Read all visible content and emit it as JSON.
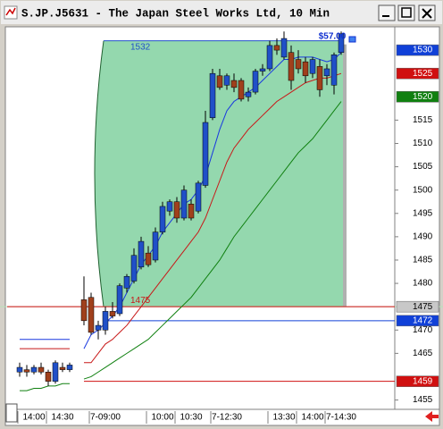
{
  "window": {
    "title": "S.JP.J5631 - The Japan Steel Works Ltd, 10 Min"
  },
  "chart_data": {
    "type": "candlestick",
    "categories": [
      null,
      null,
      "14:00",
      null,
      null,
      null,
      "14:30",
      null,
      null,
      null,
      null,
      null,
      "7-09:00",
      null,
      null,
      null,
      null,
      null,
      null,
      null,
      "10:00",
      null,
      null,
      null,
      "10:30",
      null,
      null,
      null,
      null,
      "7-12:30",
      null,
      null,
      null,
      null,
      null,
      null,
      null,
      "13:30",
      null,
      null,
      null,
      "14:00",
      null,
      null,
      null,
      "7-14:30"
    ],
    "open": [
      1461,
      1461.5,
      1461,
      1462,
      1461,
      1459,
      1462,
      1461.5,
      null,
      1476.5,
      1477,
      1470,
      1470,
      1474,
      1473.5,
      1479,
      1480.5,
      1483.5,
      1486.5,
      1485,
      1491,
      1495.5,
      1497.5,
      1494,
      1497,
      1495.5,
      1501,
      1515.5,
      1524.5,
      1522.5,
      1523.5,
      1523.5,
      1520,
      1521,
      1525.5,
      1526,
      1531,
      1528.5,
      1529.5,
      1528,
      1527.5,
      1525,
      1526.5,
      1524.5,
      1522.5,
      1529.5
    ],
    "high": [
      1463,
      1462.5,
      1462.5,
      1463,
      1461.5,
      1463.5,
      1463,
      1463,
      null,
      1481.5,
      1478,
      1472,
      1475,
      1476,
      1480,
      1482,
      1487.5,
      1490,
      1488,
      1492,
      1497.5,
      1498,
      1498.5,
      1501,
      1498,
      1502,
      1517,
      1526,
      1526,
      1525,
      1525,
      1524,
      1522,
      1526,
      1527,
      1532,
      1532.5,
      1534,
      1531,
      1530,
      1528.5,
      1528.5,
      1528,
      1527,
      1529.5,
      1534
    ],
    "low": [
      1460,
      1460,
      1460.5,
      1460.5,
      1458,
      1458.5,
      1461,
      1461,
      null,
      1471,
      1469,
      1468,
      1469,
      1472.5,
      1473,
      1478,
      1480,
      1483,
      1483.5,
      1484.5,
      1490.5,
      1494.5,
      1493,
      1493.5,
      1493.5,
      1495,
      1500.5,
      1515,
      1521.5,
      1521.5,
      1521,
      1519,
      1519,
      1520.5,
      1524.5,
      1525.5,
      1529,
      1528,
      1521.5,
      1525,
      1523,
      1524,
      1520,
      1522.5,
      1520.5,
      1529
    ],
    "close": [
      1462,
      1461,
      1462,
      1461,
      1459,
      1463,
      1461.5,
      1462.5,
      null,
      1472,
      1469.5,
      1471,
      1474,
      1473,
      1479.5,
      1481.5,
      1486,
      1489,
      1484,
      1491,
      1496.5,
      1497.5,
      1494,
      1500,
      1494,
      1501.5,
      1514.5,
      1525,
      1522,
      1524.5,
      1522,
      1519.5,
      1521,
      1525.5,
      1526,
      1531,
      1530,
      1532.5,
      1523.5,
      1526,
      1524.5,
      1528,
      1521.5,
      1526,
      1529,
      1533.5
    ],
    "up_color": "#2050c8",
    "down_color": "#a0401c",
    "series": [
      {
        "color": "#1838e0",
        "values": [
          1468,
          1468,
          1468,
          1468,
          1468,
          1468,
          1468,
          1468,
          null,
          1466,
          1469,
          1470,
          1471.5,
          1473,
          1475,
          1478,
          1481,
          1484,
          1486,
          1488,
          1491,
          1493,
          1495,
          1497,
          1498,
          1500,
          1503,
          1508,
          1513,
          1517,
          1519,
          1520,
          1521,
          1522,
          1523.5,
          1525,
          1526.5,
          1528,
          1528,
          1528.5,
          1528.5,
          1528.5,
          1528,
          1527.5,
          1528,
          1529.5
        ]
      },
      {
        "color": "#c81818",
        "values": [
          1466,
          1466,
          1466,
          1466,
          1466,
          1466,
          1466,
          1466,
          null,
          1463,
          1463,
          1465,
          1467,
          1468,
          1469.5,
          1471,
          1473,
          1475,
          1477,
          1479,
          1481,
          1483,
          1485,
          1487,
          1489,
          1491,
          1494,
          1498,
          1502,
          1506,
          1509,
          1511,
          1513,
          1514.5,
          1516,
          1517.5,
          1519,
          1520,
          1521,
          1522,
          1523,
          1523.5,
          1524,
          1524,
          1524.5,
          1525
        ]
      },
      {
        "color": "#108010",
        "values": [
          1457,
          1457,
          1457.5,
          1457.5,
          1458,
          1458,
          1458.5,
          1458.5,
          null,
          1459.5,
          1460,
          1461,
          1462,
          1463,
          1464,
          1465,
          1466,
          1467,
          1468,
          1469.5,
          1471,
          1472.5,
          1474,
          1475.5,
          1477,
          1479,
          1481,
          1483,
          1485,
          1487.5,
          1490,
          1492,
          1494,
          1496,
          1498,
          1500,
          1502,
          1504,
          1506,
          1508,
          1509.5,
          1511,
          1513,
          1515,
          1517,
          1519
        ]
      }
    ],
    "range": {
      "high": 1532,
      "low": 1475,
      "color": "#94d8ae",
      "high_color": "#2050c8",
      "low_color": "#c81818"
    },
    "levels": [
      {
        "value": 1530,
        "color": "#1040d8"
      },
      {
        "value": 1525,
        "color": "#d01010"
      },
      {
        "value": 1520,
        "color": "#108010"
      },
      {
        "value": 1475,
        "color": "#c8c8c8"
      },
      {
        "value": 1472,
        "color": "#1040d8"
      },
      {
        "value": 1459,
        "color": "#d01010"
      }
    ],
    "annotation": "$57.00",
    "ylim": [
      1453,
      1535
    ],
    "yticks": [
      1455,
      1465,
      1470,
      1480,
      1485,
      1490,
      1495,
      1500,
      1505,
      1510,
      1515
    ]
  }
}
